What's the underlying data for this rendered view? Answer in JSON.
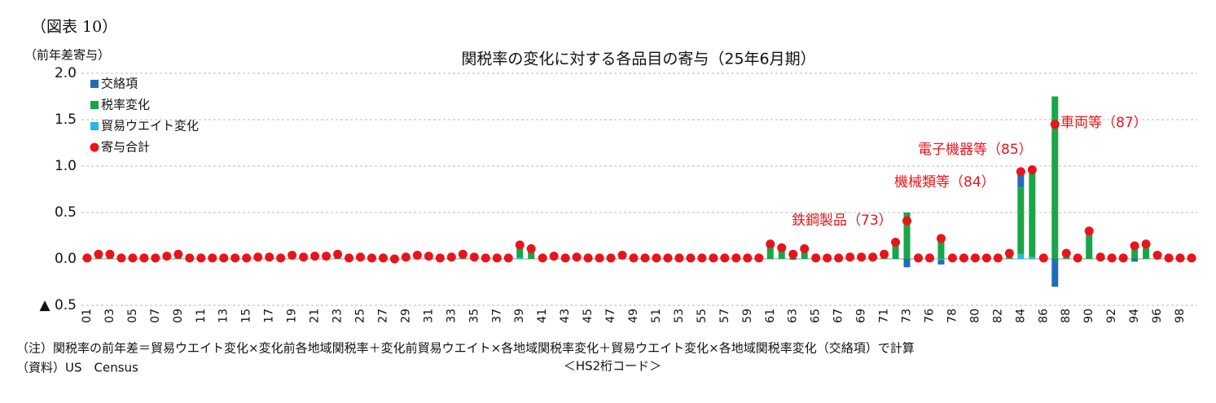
{
  "figure_label": "（図表 10）",
  "chart_data": {
    "type": "stacked_bar_dot",
    "title": "関税率の変化に対する各品目の寄与（25年6月期）",
    "y_axis_label": "（前年差寄与）",
    "x_axis_label": "＜HS2桁コード＞",
    "note": "（注）関税率の前年差＝貿易ウエイト変化×変化前各地域関税率＋変化前貿易ウエイト×各地域関税率変化＋貿易ウエイト変化×各地域関税率変化（交絡項）で計算",
    "source": "（資料）US　Census",
    "categories": [
      "01",
      null,
      "03",
      null,
      "05",
      null,
      "07",
      null,
      "09",
      null,
      "11",
      null,
      "13",
      null,
      "15",
      null,
      "17",
      null,
      "19",
      null,
      "21",
      null,
      "23",
      null,
      "25",
      null,
      "27",
      null,
      "29",
      null,
      "31",
      null,
      "33",
      null,
      "35",
      null,
      "37",
      null,
      "39",
      null,
      "41",
      null,
      "43",
      null,
      "45",
      null,
      "47",
      null,
      "49",
      null,
      "51",
      null,
      "53",
      null,
      "55",
      null,
      "57",
      null,
      "59",
      null,
      "61",
      null,
      "63",
      null,
      "65",
      null,
      "67",
      null,
      "69",
      null,
      "71",
      null,
      "73",
      null,
      "76",
      null,
      "78",
      null,
      "80",
      null,
      "82",
      null,
      "84",
      null,
      "86",
      null,
      "88",
      null,
      "90",
      null,
      "92",
      null,
      "94",
      null,
      "96",
      null,
      "98",
      null
    ],
    "series": [
      {
        "name": "交絡項",
        "color": "#1f6db8",
        "kind": "bar",
        "values": [
          0,
          0,
          0,
          0,
          0,
          0,
          0,
          0,
          0,
          0,
          0,
          0,
          0,
          0,
          0,
          0,
          0,
          0,
          0,
          0,
          0,
          0,
          0,
          0,
          0,
          0,
          0,
          0,
          -0.02,
          0,
          0,
          0,
          0,
          0,
          0,
          0,
          0,
          0,
          0,
          0,
          0,
          0,
          0,
          0,
          0,
          0,
          0,
          0,
          0,
          0,
          0,
          0,
          0,
          0,
          0,
          0,
          0,
          0,
          0,
          0,
          0,
          0,
          -0.01,
          0,
          0,
          0,
          0,
          0,
          0,
          0,
          0,
          0,
          -0.09,
          0,
          0,
          -0.05,
          0,
          0,
          0,
          0,
          0,
          0,
          0.14,
          0.04,
          0,
          -0.3,
          0,
          0,
          0,
          0,
          0,
          0,
          -0.03,
          0,
          0,
          0,
          0,
          0
        ]
      },
      {
        "name": "税率変化",
        "color": "#1aa548",
        "kind": "bar",
        "values": [
          0.01,
          0.05,
          0.05,
          0.01,
          0.01,
          0.01,
          0.01,
          0.03,
          0.05,
          0.01,
          0.01,
          0.01,
          0.01,
          0.01,
          0.01,
          0.02,
          0.02,
          0.01,
          0.04,
          0.02,
          0.03,
          0.03,
          0.05,
          0.01,
          0.02,
          0.01,
          0.01,
          0,
          0.04,
          0.04,
          0.03,
          0.01,
          0.02,
          0.05,
          0.02,
          0.01,
          0.01,
          0.01,
          0.12,
          0.08,
          0.01,
          0.03,
          0.01,
          0.02,
          0.01,
          0.01,
          0.01,
          0.04,
          0.01,
          0.01,
          0.01,
          0.01,
          0.01,
          0.01,
          0.01,
          0.01,
          0.01,
          0.01,
          0.01,
          0.01,
          0.13,
          0.09,
          0.06,
          0.07,
          0.01,
          0.01,
          0.01,
          0.02,
          0.02,
          0.02,
          0.05,
          0.15,
          0.5,
          0.01,
          0.01,
          0.2,
          0.01,
          0.01,
          0.01,
          0.01,
          0.01,
          0.06,
          0.72,
          0.9,
          0.01,
          1.75,
          0.06,
          0.01,
          0.27,
          0.02,
          0.01,
          0.01,
          0.1,
          0.12,
          0.04,
          0.01,
          0.01,
          0.01
        ]
      },
      {
        "name": "貿易ウエイト変化",
        "color": "#25b6ea",
        "kind": "bar",
        "values": [
          0,
          0,
          0,
          0,
          0,
          0,
          0,
          0,
          0,
          0,
          0,
          0,
          0,
          0,
          0,
          0,
          0,
          0,
          0,
          0,
          0,
          0,
          0,
          0,
          0,
          0,
          0,
          0,
          0,
          0,
          0,
          0,
          0,
          0,
          0,
          0,
          0,
          0,
          0.01,
          0,
          0,
          0,
          0,
          0,
          0,
          0,
          0,
          0,
          0,
          0,
          0,
          0,
          0,
          0,
          0,
          0,
          0,
          0,
          0,
          0,
          0,
          0,
          0,
          0,
          0,
          0,
          0,
          0,
          0,
          0,
          0,
          0,
          0,
          0,
          0,
          -0.01,
          0,
          0,
          0,
          0,
          0,
          0,
          0.05,
          0.02,
          0,
          0,
          0,
          0,
          0,
          0,
          0,
          0,
          0,
          0,
          0,
          0,
          0,
          0
        ]
      },
      {
        "name": "寄与合計",
        "color": "#e8141b",
        "kind": "dot",
        "values": [
          0.01,
          0.05,
          0.05,
          0.01,
          0.01,
          0.01,
          0.01,
          0.03,
          0.05,
          0.01,
          0.01,
          0.01,
          0.01,
          0.01,
          0.01,
          0.02,
          0.02,
          0.01,
          0.04,
          0.02,
          0.03,
          0.03,
          0.05,
          0.01,
          0.02,
          0.01,
          0.01,
          0,
          0.02,
          0.04,
          0.03,
          0.01,
          0.02,
          0.05,
          0.02,
          0.01,
          0.01,
          0.01,
          0.15,
          0.11,
          0.01,
          0.03,
          0.01,
          0.02,
          0.01,
          0.01,
          0.01,
          0.04,
          0.01,
          0.01,
          0.01,
          0.01,
          0.01,
          0.01,
          0.01,
          0.01,
          0.01,
          0.01,
          0.01,
          0.01,
          0.16,
          0.12,
          0.05,
          0.11,
          0.01,
          0.01,
          0.01,
          0.02,
          0.02,
          0.02,
          0.05,
          0.18,
          0.41,
          0.01,
          0.01,
          0.22,
          0.01,
          0.01,
          0.01,
          0.01,
          0.01,
          0.06,
          0.94,
          0.96,
          0.01,
          1.45,
          0.06,
          0.01,
          0.3,
          0.02,
          0.01,
          0.01,
          0.14,
          0.16,
          0.04,
          0.01,
          0.01,
          0.01
        ]
      }
    ],
    "annotations": [
      "鉄鋼製品（73）",
      "機械類等（84）",
      "電子機器等（85）",
      "車両等（87）"
    ],
    "annotation_color": "#e8141b",
    "ylim": [
      -0.5,
      2.0
    ],
    "yticks": [
      {
        "value": -0.5,
        "label": "▲ 0.5"
      },
      {
        "value": 0,
        "label": "0.0"
      },
      {
        "value": 0.5,
        "label": "0.5"
      },
      {
        "value": 1,
        "label": "1.0"
      },
      {
        "value": 1.5,
        "label": "1.5"
      },
      {
        "value": 2,
        "label": "2.0"
      }
    ],
    "grid": true,
    "legend": "upper-left"
  }
}
